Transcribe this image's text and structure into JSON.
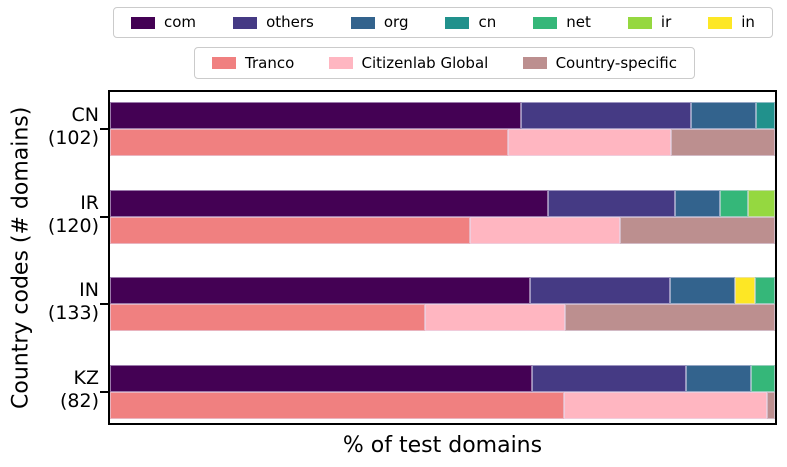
{
  "figure": {
    "xlabel": "% of test domains",
    "ylabel": "Country codes (# domains)"
  },
  "chart_data": {
    "type": "bar",
    "orientation": "horizontal",
    "stacked": true,
    "xlim": [
      0,
      100
    ],
    "grid": false,
    "legend_position": "above plot, two rows",
    "tld_legend": [
      {
        "label": "com",
        "color": "#440154"
      },
      {
        "label": "others",
        "color": "#453a84"
      },
      {
        "label": "org",
        "color": "#33638d"
      },
      {
        "label": "cn",
        "color": "#21918c"
      },
      {
        "label": "net",
        "color": "#35b779"
      },
      {
        "label": "ir",
        "color": "#95d840"
      },
      {
        "label": "in",
        "color": "#fde725"
      }
    ],
    "source_legend": [
      {
        "label": "Tranco",
        "color": "#f08080"
      },
      {
        "label": "Citizenlab Global",
        "color": "#ffb6c1"
      },
      {
        "label": "Country-specific",
        "color": "#bc8f8f"
      }
    ],
    "groups": [
      {
        "code": "CN",
        "count_label": "(102)",
        "domain_count": 102,
        "tld_bar": [
          {
            "label": "com",
            "pct": 61.8
          },
          {
            "label": "others",
            "pct": 25.5
          },
          {
            "label": "org",
            "pct": 9.8
          },
          {
            "label": "cn",
            "pct": 2.9
          }
        ],
        "source_bar": [
          {
            "label": "Tranco",
            "pct": 59.8
          },
          {
            "label": "Citizenlab Global",
            "pct": 24.5
          },
          {
            "label": "Country-specific",
            "pct": 15.7
          }
        ]
      },
      {
        "code": "IR",
        "count_label": "(120)",
        "domain_count": 120,
        "tld_bar": [
          {
            "label": "com",
            "pct": 65.8
          },
          {
            "label": "others",
            "pct": 19.2
          },
          {
            "label": "org",
            "pct": 6.7
          },
          {
            "label": "net",
            "pct": 4.2
          },
          {
            "label": "ir",
            "pct": 4.1
          }
        ],
        "source_bar": [
          {
            "label": "Tranco",
            "pct": 54.2
          },
          {
            "label": "Citizenlab Global",
            "pct": 22.5
          },
          {
            "label": "Country-specific",
            "pct": 23.3
          }
        ]
      },
      {
        "code": "IN",
        "count_label": "(133)",
        "domain_count": 133,
        "tld_bar": [
          {
            "label": "com",
            "pct": 63.2
          },
          {
            "label": "others",
            "pct": 21.0
          },
          {
            "label": "org",
            "pct": 9.8
          },
          {
            "label": "in",
            "pct": 3.0
          },
          {
            "label": "net",
            "pct": 3.0
          }
        ],
        "source_bar": [
          {
            "label": "Tranco",
            "pct": 47.4
          },
          {
            "label": "Citizenlab Global",
            "pct": 21.0
          },
          {
            "label": "Country-specific",
            "pct": 31.6
          }
        ]
      },
      {
        "code": "KZ",
        "count_label": "(82)",
        "domain_count": 82,
        "tld_bar": [
          {
            "label": "com",
            "pct": 63.4
          },
          {
            "label": "others",
            "pct": 23.2
          },
          {
            "label": "org",
            "pct": 9.8
          },
          {
            "label": "net",
            "pct": 3.6
          }
        ],
        "source_bar": [
          {
            "label": "Tranco",
            "pct": 68.3
          },
          {
            "label": "Citizenlab Global",
            "pct": 30.5
          },
          {
            "label": "Country-specific",
            "pct": 1.2
          }
        ]
      }
    ]
  }
}
